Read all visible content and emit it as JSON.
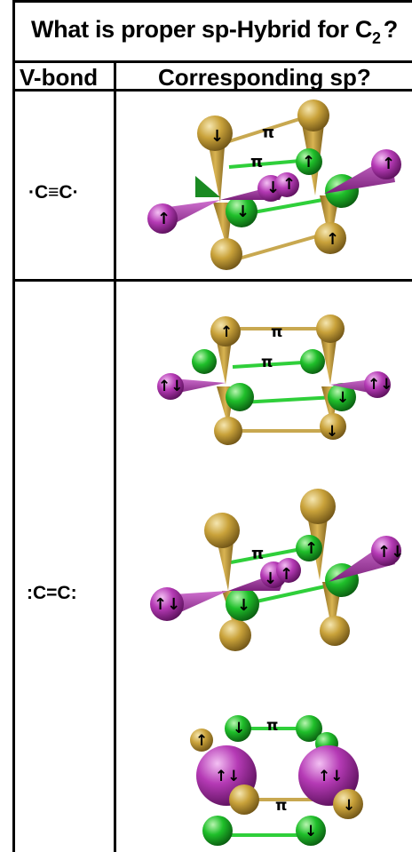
{
  "table": {
    "title_main": "What is proper sp-Hybrid for C",
    "title_sub": "2",
    "title_end": "?",
    "col1_header": "V-bond",
    "col2_header": "Corresponding sp?",
    "rows": [
      {
        "label": "·C≡C·"
      },
      {
        "label": ":C=C:"
      }
    ]
  },
  "figures": {
    "pi": "π",
    "up": "↑",
    "down": "↓",
    "updown": "↑↓",
    "downup": "↓↑"
  },
  "colors": {
    "gold": "#c9a23a",
    "green": "#1fbf2a",
    "magenta": "#b53ab5",
    "bond_gold": "#c8a850",
    "bond_green": "#2fcf3a"
  }
}
